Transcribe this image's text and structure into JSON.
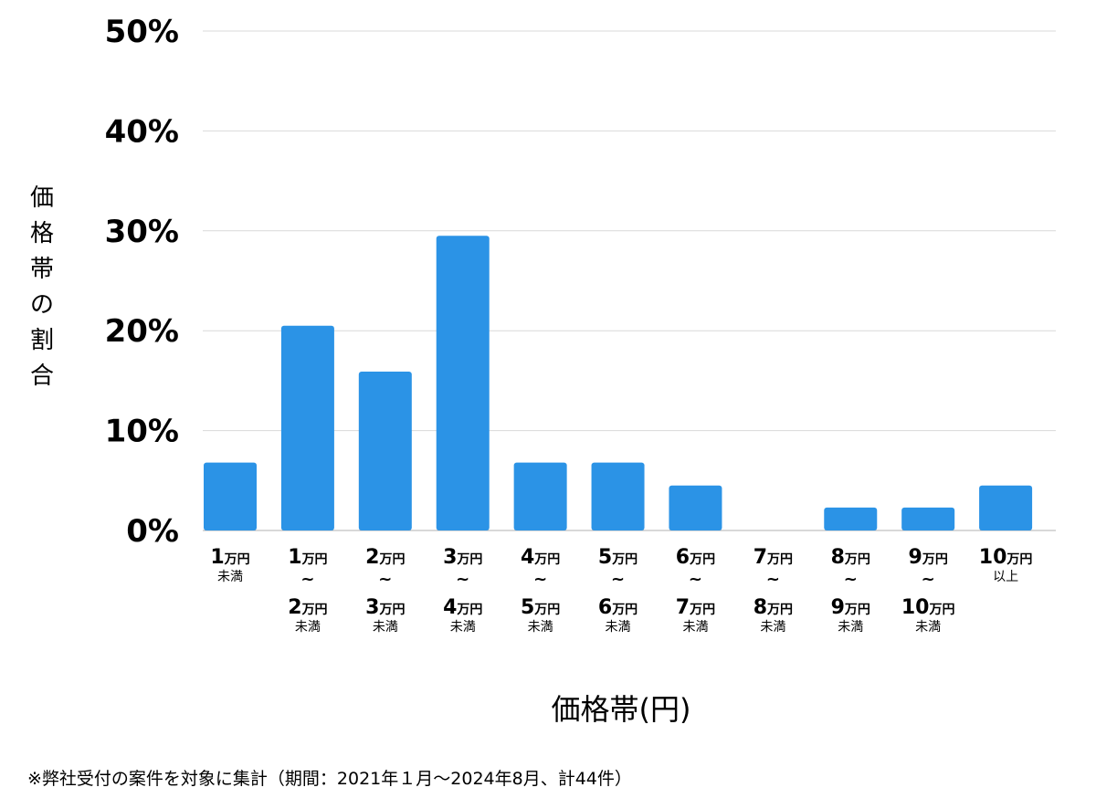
{
  "chart_data": {
    "type": "bar",
    "title": "",
    "xlabel": "価格帯(円)",
    "ylabel": "価格帯の割合",
    "ylim": [
      0,
      50
    ],
    "yticks": [
      "0%",
      "10%",
      "20%",
      "30%",
      "40%",
      "50%"
    ],
    "grid": true,
    "categories": [
      {
        "id": "c1",
        "from": "1",
        "to": null,
        "from_unit": "万円",
        "to_unit": null,
        "note": "未満"
      },
      {
        "id": "c2",
        "from": "1",
        "to": "2",
        "from_unit": "万円",
        "to_unit": "万円",
        "note": "未満"
      },
      {
        "id": "c3",
        "from": "2",
        "to": "3",
        "from_unit": "万円",
        "to_unit": "万円",
        "note": "未満"
      },
      {
        "id": "c4",
        "from": "3",
        "to": "4",
        "from_unit": "万円",
        "to_unit": "万円",
        "note": "未満"
      },
      {
        "id": "c5",
        "from": "4",
        "to": "5",
        "from_unit": "万円",
        "to_unit": "万円",
        "note": "未満"
      },
      {
        "id": "c6",
        "from": "5",
        "to": "6",
        "from_unit": "万円",
        "to_unit": "万円",
        "note": "未満"
      },
      {
        "id": "c7",
        "from": "6",
        "to": "7",
        "from_unit": "万円",
        "to_unit": "万円",
        "note": "未満"
      },
      {
        "id": "c8",
        "from": "7",
        "to": "8",
        "from_unit": "万円",
        "to_unit": "万円",
        "note": "未満"
      },
      {
        "id": "c9",
        "from": "8",
        "to": "9",
        "from_unit": "万円",
        "to_unit": "万円",
        "note": "未満"
      },
      {
        "id": "c10",
        "from": "9",
        "to": "10",
        "from_unit": "万円",
        "to_unit": "万円",
        "note": "未満"
      },
      {
        "id": "c11",
        "from": "10",
        "to": null,
        "from_unit": "万円",
        "to_unit": null,
        "note": "以上"
      }
    ],
    "range_symbol": "~",
    "values": [
      6.8,
      20.5,
      15.9,
      29.5,
      6.8,
      6.8,
      4.5,
      0,
      2.3,
      2.3,
      4.5
    ],
    "color": "#2b93e6"
  },
  "footnote": "※弊社受付の案件を対象に集計（期間：2021年１月〜2024年8月、計44件）"
}
